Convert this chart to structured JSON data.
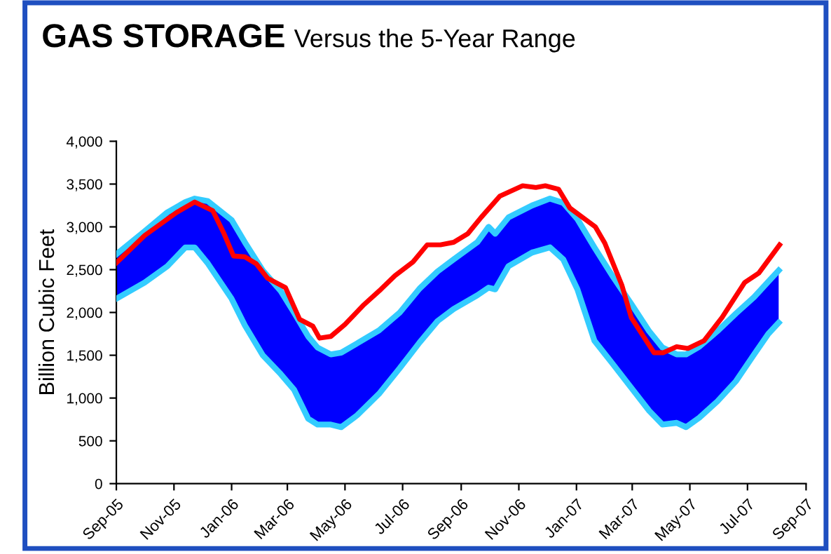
{
  "chart_data": {
    "type": "line",
    "title": "GAS STORAGE",
    "subtitle": "Versus the 5-Year Range",
    "ylabel": "Billion Cubic Feet",
    "xlim": [
      "2005-09-01",
      "2007-09-01"
    ],
    "xticks": [
      {
        "value": "2005-09-01",
        "label": "Sep-05"
      },
      {
        "value": "2005-11-01",
        "label": "Nov-05"
      },
      {
        "value": "2006-01-01",
        "label": "Jan-06"
      },
      {
        "value": "2006-03-01",
        "label": "Mar-06"
      },
      {
        "value": "2006-05-01",
        "label": "May-06"
      },
      {
        "value": "2006-07-01",
        "label": "Jul-06"
      },
      {
        "value": "2006-09-01",
        "label": "Sep-06"
      },
      {
        "value": "2006-11-01",
        "label": "Nov-06"
      },
      {
        "value": "2007-01-01",
        "label": "Jan-07"
      },
      {
        "value": "2007-03-01",
        "label": "Mar-07"
      },
      {
        "value": "2007-05-01",
        "label": "May-07"
      },
      {
        "value": "2007-07-01",
        "label": "Jul-07"
      },
      {
        "value": "2007-09-01",
        "label": "Sep-07"
      }
    ],
    "ylim": [
      0,
      4000
    ],
    "yticks": [
      {
        "value": 0,
        "label": "0"
      },
      {
        "value": 500,
        "label": "500"
      },
      {
        "value": 1000,
        "label": "1,000"
      },
      {
        "value": 1500,
        "label": "1,500"
      },
      {
        "value": 2000,
        "label": "2,000"
      },
      {
        "value": 2500,
        "label": "2,500"
      },
      {
        "value": 3000,
        "label": "3,000"
      },
      {
        "value": 3500,
        "label": "3,500"
      },
      {
        "value": 4000,
        "label": "4,000"
      }
    ],
    "grid": false,
    "legend": false,
    "series": [
      {
        "color": "#33ccff",
        "x": [
          "2005-09-01",
          "2005-10-01",
          "2005-10-25",
          "2005-11-13",
          "2005-11-23",
          "2005-12-07",
          "2006-01-01",
          "2006-01-15",
          "2006-02-03",
          "2006-02-22",
          "2006-03-08",
          "2006-03-23",
          "2006-04-02",
          "2006-04-16",
          "2006-04-27",
          "2006-05-14",
          "2006-06-06",
          "2006-06-28",
          "2006-07-19",
          "2006-08-07",
          "2006-08-24",
          "2006-09-18",
          "2006-09-30",
          "2006-10-07",
          "2006-10-21",
          "2006-11-15",
          "2006-12-04",
          "2006-12-18",
          "2007-01-02",
          "2007-01-20",
          "2007-02-09",
          "2007-02-28",
          "2007-03-19",
          "2007-04-02",
          "2007-04-17",
          "2007-04-27",
          "2007-05-11",
          "2007-05-30",
          "2007-06-19",
          "2007-07-08",
          "2007-07-23",
          "2007-08-03"
        ],
        "values": [
          2680,
          2950,
          3170,
          3290,
          3330,
          3300,
          3080,
          2820,
          2490,
          2250,
          2000,
          1720,
          1590,
          1510,
          1530,
          1640,
          1790,
          2000,
          2280,
          2480,
          2620,
          2820,
          3000,
          2920,
          3110,
          3250,
          3330,
          3280,
          3090,
          2760,
          2410,
          2100,
          1780,
          1590,
          1510,
          1510,
          1600,
          1780,
          1990,
          2180,
          2360,
          2490
        ],
        "upper": [
          2680,
          2950,
          3170,
          3290,
          3330,
          3300,
          3080,
          2820,
          2490,
          2250,
          2000,
          1720,
          1590,
          1510,
          1530,
          1640,
          1790,
          2000,
          2280,
          2480,
          2620,
          2820,
          3000,
          2920,
          3110,
          3250,
          3330,
          3280,
          3090,
          2760,
          2410,
          2100,
          1780,
          1590,
          1510,
          1510,
          1600,
          1780,
          1990,
          2180,
          2360,
          2490
        ],
        "lower": [
          2160,
          2350,
          2540,
          2760,
          2760,
          2570,
          2160,
          1850,
          1500,
          1280,
          1100,
          760,
          690,
          690,
          660,
          800,
          1050,
          1350,
          1650,
          1900,
          2040,
          2200,
          2290,
          2270,
          2540,
          2700,
          2760,
          2620,
          2270,
          1670,
          1390,
          1120,
          850,
          690,
          710,
          660,
          770,
          960,
          1200,
          1510,
          1750,
          1880
        ]
      },
      {
        "color": "#33ccff",
        "x": [
          "2005-09-01",
          "2005-10-01",
          "2005-10-25",
          "2005-11-13",
          "2005-11-23",
          "2005-12-07",
          "2006-01-01",
          "2006-01-15",
          "2006-02-03",
          "2006-02-22",
          "2006-03-08",
          "2006-03-23",
          "2006-04-02",
          "2006-04-16",
          "2006-04-27",
          "2006-05-14",
          "2006-06-06",
          "2006-06-28",
          "2006-07-19",
          "2006-08-07",
          "2006-08-24",
          "2006-09-18",
          "2006-09-30",
          "2006-10-07",
          "2006-10-21",
          "2006-11-15",
          "2006-12-04",
          "2006-12-18",
          "2007-01-02",
          "2007-01-20",
          "2007-02-09",
          "2007-02-28",
          "2007-03-19",
          "2007-04-02",
          "2007-04-17",
          "2007-04-27",
          "2007-05-11",
          "2007-05-30",
          "2007-06-19",
          "2007-07-08",
          "2007-07-23",
          "2007-08-03"
        ],
        "values": [
          2160,
          2350,
          2540,
          2760,
          2760,
          2570,
          2160,
          1850,
          1500,
          1280,
          1100,
          760,
          690,
          690,
          660,
          800,
          1050,
          1350,
          1650,
          1900,
          2040,
          2200,
          2290,
          2270,
          2540,
          2700,
          2760,
          2620,
          2270,
          1670,
          1390,
          1120,
          850,
          690,
          710,
          660,
          770,
          960,
          1200,
          1510,
          1750,
          1880
        ]
      },
      {
        "color": "#ff0000",
        "x": [
          "2005-09-01",
          "2005-10-01",
          "2005-11-04",
          "2005-11-23",
          "2005-12-12",
          "2005-12-24",
          "2006-01-03",
          "2006-01-15",
          "2006-01-27",
          "2006-02-08",
          "2006-02-27",
          "2006-03-14",
          "2006-03-28",
          "2006-04-04",
          "2006-04-16",
          "2006-05-01",
          "2006-05-20",
          "2006-06-08",
          "2006-06-23",
          "2006-07-12",
          "2006-07-27",
          "2006-08-10",
          "2006-08-24",
          "2006-09-08",
          "2006-09-22",
          "2006-10-12",
          "2006-11-05",
          "2006-11-19",
          "2006-11-29",
          "2006-12-13",
          "2006-12-25",
          "2007-01-21",
          "2007-01-31",
          "2007-02-18",
          "2007-02-28",
          "2007-03-24",
          "2007-04-03",
          "2007-04-17",
          "2007-04-29",
          "2007-05-16",
          "2007-06-04",
          "2007-06-28",
          "2007-07-13",
          "2007-08-04"
        ],
        "values": [
          2580,
          2900,
          3170,
          3290,
          3190,
          2920,
          2660,
          2650,
          2570,
          2400,
          2290,
          1920,
          1840,
          1700,
          1720,
          1860,
          2080,
          2270,
          2430,
          2590,
          2790,
          2790,
          2820,
          2920,
          3110,
          3360,
          3480,
          3460,
          3480,
          3440,
          3220,
          3000,
          2810,
          2320,
          1940,
          1530,
          1530,
          1600,
          1580,
          1670,
          1940,
          2350,
          2460,
          2790
        ]
      }
    ]
  }
}
